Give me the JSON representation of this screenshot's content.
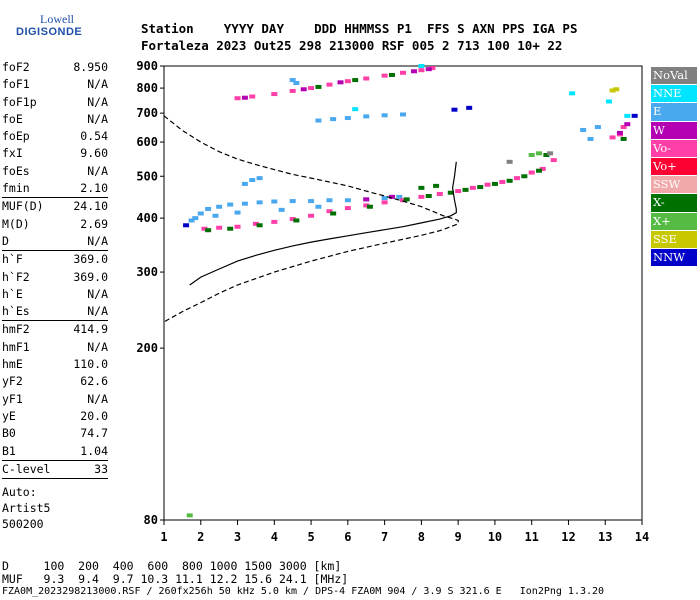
{
  "logo": {
    "top": "Lowell",
    "bottom": "DIGISONDE"
  },
  "header": {
    "line1": "Station    YYYY DAY    DDD HHMMSS P1  FFS S AXN PPS IGA PS",
    "line2": "Fortaleza 2023 Out25 298 213000 RSF 005 2 713 100 10+ 22"
  },
  "params": [
    {
      "label": "foF2",
      "value": "8.950"
    },
    {
      "label": "foF1",
      "value": "N/A"
    },
    {
      "label": "foF1p",
      "value": "N/A"
    },
    {
      "label": "foE",
      "value": "N/A"
    },
    {
      "label": "foEp",
      "value": "0.54"
    },
    {
      "label": "fxI",
      "value": "9.60"
    },
    {
      "label": "foEs",
      "value": "N/A"
    },
    {
      "label": "fmin",
      "value": "2.10"
    },
    {
      "sep": true
    },
    {
      "label": "MUF(D)",
      "value": "24.10"
    },
    {
      "label": "M(D)",
      "value": "2.69"
    },
    {
      "label": "D",
      "value": "N/A"
    },
    {
      "sep": true
    },
    {
      "label": "h`F",
      "value": "369.0"
    },
    {
      "label": "h`F2",
      "value": "369.0"
    },
    {
      "label": "h`E",
      "value": "N/A"
    },
    {
      "label": "h`Es",
      "value": "N/A"
    },
    {
      "sep": true
    },
    {
      "label": "hmF2",
      "value": "414.9"
    },
    {
      "label": "hmF1",
      "value": "N/A"
    },
    {
      "label": "hmE",
      "value": "110.0"
    },
    {
      "label": "yF2",
      "value": "62.6"
    },
    {
      "label": "yF1",
      "value": "N/A"
    },
    {
      "label": "yE",
      "value": "20.0"
    },
    {
      "label": "B0",
      "value": "74.7"
    },
    {
      "label": "B1",
      "value": "1.04"
    },
    {
      "sep": true
    },
    {
      "label": "C-level",
      "value": "33"
    },
    {
      "sep": true
    }
  ],
  "auto": {
    "line1": "Auto:",
    "line2": "Artist5",
    "line3": "500200"
  },
  "legend": [
    {
      "label": "NoVal",
      "color": "#808080"
    },
    {
      "label": "NNE",
      "color": "#00e5ff"
    },
    {
      "label": "E",
      "color": "#4aa8ee"
    },
    {
      "label": "W",
      "color": "#b300b3"
    },
    {
      "label": "Vo-",
      "color": "#ff3fa8"
    },
    {
      "label": "Vo+",
      "color": "#ff0033"
    },
    {
      "label": "SSW",
      "color": "#f0a8a8"
    },
    {
      "label": "X-",
      "color": "#007000"
    },
    {
      "label": "X+",
      "color": "#55bb44"
    },
    {
      "label": "SSE",
      "color": "#c8c800"
    },
    {
      "label": "NNW",
      "color": "#0000c8"
    }
  ],
  "footer": {
    "line1": "D     100  200  400  600  800 1000 1500 3000 [km]",
    "line2": "MUF   9.3  9.4  9.7 10.3 11.1 12.2 15.6 24.1 [MHz]",
    "line3": "FZA0M_2023298213000.RSF / 260fx256h 50 kHz 5.0 km / DPS-4 FZA0M 904 / 3.9 S 321.6 E   Ion2Png 1.3.20"
  },
  "chart_data": {
    "type": "scatter",
    "title": "",
    "xlabel": "",
    "ylabel": "",
    "xlim": [
      1,
      14
    ],
    "ylim": [
      80,
      900
    ],
    "y_scale": "log",
    "x_ticks": [
      1,
      2,
      3,
      4,
      5,
      6,
      7,
      8,
      9,
      10,
      11,
      12,
      13,
      14
    ],
    "y_ticks": [
      80,
      200,
      300,
      400,
      500,
      600,
      700,
      800,
      900
    ],
    "series": [
      {
        "name": "E",
        "color": "#4aa8ee",
        "points": [
          [
            1.75,
            395
          ],
          [
            1.85,
            400
          ],
          [
            2.0,
            410
          ],
          [
            2.2,
            420
          ],
          [
            2.5,
            425
          ],
          [
            2.8,
            430
          ],
          [
            3.2,
            432
          ],
          [
            3.6,
            435
          ],
          [
            4.0,
            437
          ],
          [
            4.5,
            438
          ],
          [
            5.0,
            438
          ],
          [
            5.5,
            440
          ],
          [
            6.0,
            440
          ],
          [
            6.5,
            442
          ],
          [
            7.0,
            445
          ],
          [
            7.4,
            448
          ],
          [
            2.4,
            405
          ],
          [
            3.0,
            412
          ],
          [
            4.2,
            418
          ],
          [
            5.2,
            425
          ],
          [
            3.2,
            480
          ],
          [
            3.4,
            490
          ],
          [
            3.6,
            495
          ],
          [
            5.2,
            673
          ],
          [
            5.6,
            678
          ],
          [
            6.0,
            682
          ],
          [
            6.5,
            688
          ],
          [
            7.0,
            692
          ],
          [
            7.5,
            695
          ],
          [
            4.6,
            822
          ],
          [
            4.5,
            835
          ],
          [
            12.4,
            640
          ],
          [
            12.8,
            650
          ],
          [
            12.6,
            610
          ]
        ]
      },
      {
        "name": "Vo-",
        "color": "#ff3fa8",
        "points": [
          [
            2.1,
            378
          ],
          [
            2.5,
            380
          ],
          [
            3.0,
            382
          ],
          [
            3.5,
            388
          ],
          [
            4.0,
            392
          ],
          [
            4.5,
            398
          ],
          [
            5.0,
            405
          ],
          [
            5.5,
            415
          ],
          [
            6.0,
            422
          ],
          [
            6.5,
            428
          ],
          [
            7.0,
            435
          ],
          [
            7.5,
            440
          ],
          [
            8.0,
            448
          ],
          [
            8.5,
            455
          ],
          [
            9.0,
            462
          ],
          [
            9.4,
            470
          ],
          [
            9.8,
            478
          ],
          [
            10.2,
            485
          ],
          [
            10.6,
            495
          ],
          [
            11.0,
            510
          ],
          [
            11.3,
            520
          ],
          [
            11.6,
            545
          ],
          [
            3.0,
            758
          ],
          [
            3.4,
            765
          ],
          [
            4.0,
            775
          ],
          [
            4.5,
            788
          ],
          [
            5.0,
            800
          ],
          [
            5.5,
            815
          ],
          [
            6.0,
            830
          ],
          [
            6.5,
            842
          ],
          [
            7.0,
            855
          ],
          [
            7.5,
            868
          ],
          [
            8.0,
            880
          ],
          [
            8.3,
            890
          ],
          [
            13.2,
            615
          ],
          [
            13.4,
            625
          ],
          [
            13.5,
            650
          ]
        ]
      },
      {
        "name": "X-",
        "color": "#007000",
        "points": [
          [
            2.2,
            375
          ],
          [
            2.8,
            378
          ],
          [
            3.6,
            385
          ],
          [
            4.6,
            395
          ],
          [
            5.6,
            410
          ],
          [
            6.6,
            425
          ],
          [
            7.6,
            442
          ],
          [
            8.2,
            450
          ],
          [
            8.8,
            458
          ],
          [
            9.2,
            465
          ],
          [
            9.6,
            472
          ],
          [
            10.0,
            480
          ],
          [
            10.4,
            488
          ],
          [
            10.8,
            500
          ],
          [
            11.2,
            515
          ],
          [
            11.4,
            560
          ],
          [
            8.0,
            470
          ],
          [
            8.4,
            475
          ],
          [
            5.2,
            805
          ],
          [
            6.2,
            835
          ],
          [
            7.2,
            858
          ],
          [
            13.5,
            610
          ]
        ]
      },
      {
        "name": "W",
        "color": "#b300b3",
        "points": [
          [
            3.2,
            760
          ],
          [
            4.8,
            795
          ],
          [
            5.8,
            825
          ],
          [
            7.8,
            875
          ],
          [
            8.2,
            885
          ],
          [
            13.4,
            630
          ],
          [
            13.6,
            660
          ],
          [
            6.5,
            442
          ],
          [
            7.2,
            448
          ]
        ]
      },
      {
        "name": "NNE",
        "color": "#00e5ff",
        "points": [
          [
            6.2,
            715
          ],
          [
            12.1,
            778
          ],
          [
            13.1,
            745
          ],
          [
            13.6,
            690
          ],
          [
            8.0,
            900
          ]
        ]
      },
      {
        "name": "SSE",
        "color": "#c8c800",
        "points": [
          [
            13.2,
            790
          ],
          [
            13.3,
            795
          ]
        ]
      },
      {
        "name": "NNW",
        "color": "#0000c8",
        "points": [
          [
            1.6,
            385
          ],
          [
            8.9,
            713
          ],
          [
            9.3,
            720
          ],
          [
            13.8,
            690
          ]
        ]
      },
      {
        "name": "X+",
        "color": "#55bb44",
        "points": [
          [
            1.7,
            82
          ],
          [
            11.0,
            560
          ],
          [
            11.2,
            565
          ]
        ]
      },
      {
        "name": "NoVal",
        "color": "#808080",
        "points": [
          [
            11.5,
            565
          ],
          [
            10.4,
            540
          ]
        ]
      }
    ],
    "lines": [
      {
        "style": "solid",
        "points": [
          [
            1.7,
            280
          ],
          [
            2.0,
            292
          ],
          [
            2.5,
            305
          ],
          [
            3.0,
            318
          ],
          [
            3.5,
            328
          ],
          [
            4.0,
            337
          ],
          [
            4.5,
            345
          ],
          [
            5.0,
            352
          ],
          [
            5.5,
            358
          ],
          [
            6.0,
            364
          ],
          [
            6.5,
            370
          ],
          [
            7.0,
            376
          ],
          [
            7.5,
            382
          ],
          [
            8.0,
            390
          ],
          [
            8.5,
            398
          ],
          [
            8.8,
            405
          ],
          [
            8.95,
            412
          ],
          [
            8.95,
            420
          ],
          [
            8.9,
            440
          ],
          [
            8.85,
            470
          ],
          [
            8.9,
            500
          ],
          [
            8.95,
            540
          ]
        ]
      },
      {
        "style": "dashed",
        "points": [
          [
            1.0,
            690
          ],
          [
            1.5,
            638
          ],
          [
            2.0,
            600
          ],
          [
            2.5,
            570
          ],
          [
            3.0,
            548
          ],
          [
            3.5,
            532
          ],
          [
            4.0,
            518
          ],
          [
            4.5,
            505
          ],
          [
            5.0,
            495
          ],
          [
            5.5,
            485
          ],
          [
            6.0,
            475
          ],
          [
            6.5,
            462
          ],
          [
            7.0,
            450
          ],
          [
            7.5,
            438
          ],
          [
            8.0,
            425
          ],
          [
            8.3,
            415
          ],
          [
            8.6,
            405
          ],
          [
            8.9,
            398
          ],
          [
            9.0,
            395
          ],
          [
            9.0,
            388
          ],
          [
            8.8,
            382
          ],
          [
            8.5,
            374
          ],
          [
            8.0,
            365
          ],
          [
            7.0,
            350
          ],
          [
            6.0,
            335
          ],
          [
            5.0,
            318
          ],
          [
            4.0,
            300
          ],
          [
            3.0,
            280
          ],
          [
            2.5,
            268
          ],
          [
            2.0,
            255
          ],
          [
            1.5,
            243
          ],
          [
            1.0,
            230
          ]
        ]
      }
    ]
  }
}
